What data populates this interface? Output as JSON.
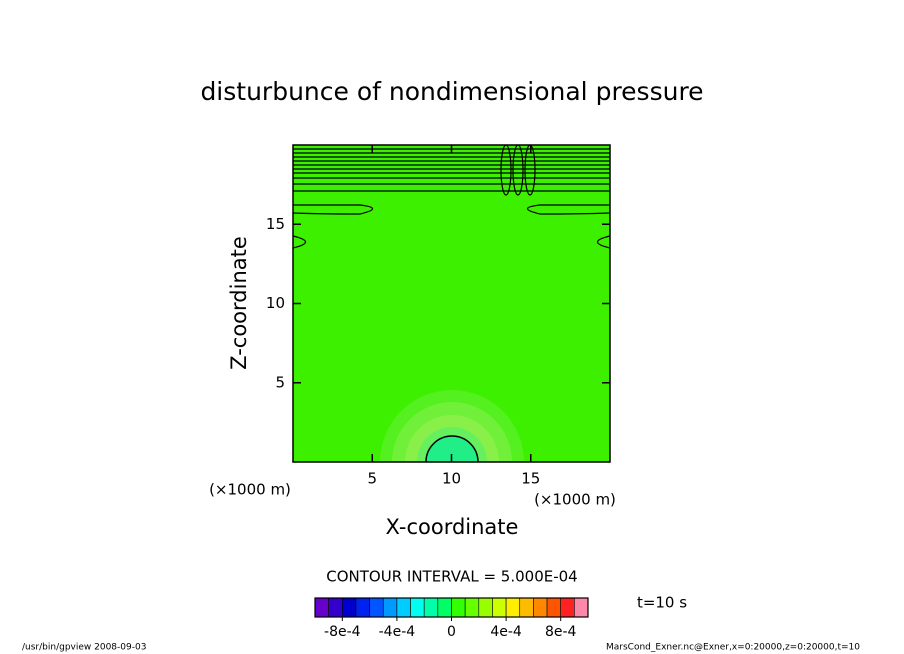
{
  "chart_data": {
    "type": "contour",
    "title": "disturbunce of nondimensional pressure",
    "x_label": "X-coordinate",
    "y_label": "Z-coordinate",
    "x_unit": "(×1000 m)",
    "y_unit": "(×1000 m)",
    "xlim": [
      0,
      20
    ],
    "ylim": [
      0,
      20
    ],
    "xticks": [
      5,
      10,
      15
    ],
    "yticks": [
      5,
      10,
      15
    ],
    "contour_interval": "CONTOUR INTERVAL = 5.000E-04",
    "time_label": "t=10 s",
    "colorbar": {
      "clim": [
        -0.001,
        0.001
      ],
      "ticks": [
        {
          "value": -0.0008,
          "label": "-8e-4"
        },
        {
          "value": -0.0004,
          "label": "-4e-4"
        },
        0,
        {
          "value": 0.0004,
          "label": "4e-4"
        },
        {
          "value": 0.0008,
          "label": "8e-4"
        }
      ],
      "colors": [
        "#6600cc",
        "#3300cc",
        "#0000cc",
        "#0022ee",
        "#0055ff",
        "#0099ff",
        "#00ccff",
        "#00ffee",
        "#00ffaa",
        "#00ff66",
        "#33ff00",
        "#66ff00",
        "#99ff00",
        "#ccff00",
        "#ffee00",
        "#ffbb00",
        "#ff8800",
        "#ff5500",
        "#ff2222",
        "#ff88aa"
      ]
    },
    "footer_left": "/usr/bin/gpview  2008-09-03",
    "footer_right": "MarsCond_Exner.nc@Exner,x=0:20000,z=0:20000,t=10"
  }
}
